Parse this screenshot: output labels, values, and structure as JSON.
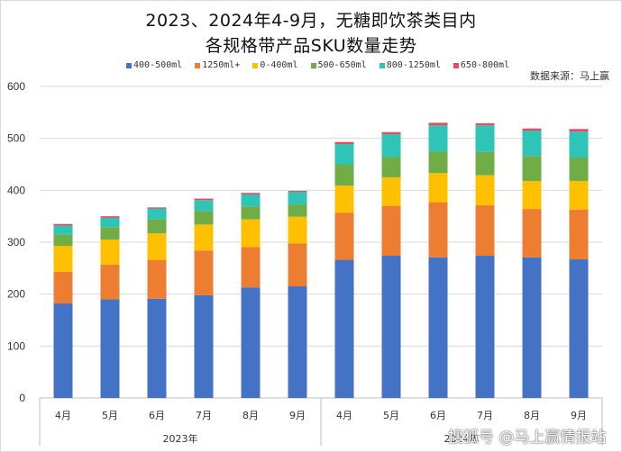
{
  "chart_data": {
    "type": "bar",
    "stacked": true,
    "title": "2023、2024年4-9月，无糖即饮茶类目内",
    "subtitle": "各规格带产品SKU数量走势",
    "source_note": "数据来源：马上赢",
    "xlabel": "",
    "ylabel": "",
    "ylim": [
      0,
      600
    ],
    "yticks": [
      0,
      100,
      200,
      300,
      400,
      500,
      600
    ],
    "grid": true,
    "legend_position": "top",
    "categories": [
      "4月",
      "5月",
      "6月",
      "7月",
      "8月",
      "9月",
      "4月",
      "5月",
      "6月",
      "7月",
      "8月",
      "9月"
    ],
    "groups": [
      {
        "label": "2023年",
        "count": 6
      },
      {
        "label": "2024年",
        "count": 6
      }
    ],
    "series": [
      {
        "name": "400-500ml",
        "color": "#4472C4",
        "values": [
          182,
          190,
          191,
          198,
          213,
          215,
          266,
          274,
          271,
          274,
          271,
          267
        ]
      },
      {
        "name": "1250ml+",
        "color": "#ED7D31",
        "values": [
          61,
          67,
          75,
          86,
          78,
          83,
          91,
          96,
          106,
          97,
          93,
          96
        ]
      },
      {
        "name": "0-400ml",
        "color": "#FFC000",
        "values": [
          50,
          48,
          51,
          50,
          53,
          51,
          52,
          55,
          56,
          58,
          54,
          55
        ]
      },
      {
        "name": "500-650ml",
        "color": "#70AD47",
        "values": [
          22,
          24,
          27,
          26,
          25,
          24,
          41,
          39,
          42,
          45,
          48,
          45
        ]
      },
      {
        "name": "800-1250ml",
        "color": "#2EC4B6",
        "values": [
          17,
          18,
          21,
          21,
          23,
          24,
          39,
          44,
          50,
          51,
          49,
          50
        ]
      },
      {
        "name": "650-800ml",
        "color": "#E84A5F",
        "values": [
          3,
          3,
          2,
          3,
          3,
          2,
          4,
          4,
          5,
          4,
          4,
          5
        ]
      }
    ]
  },
  "watermark": "搜狐号 @马上赢情报站"
}
